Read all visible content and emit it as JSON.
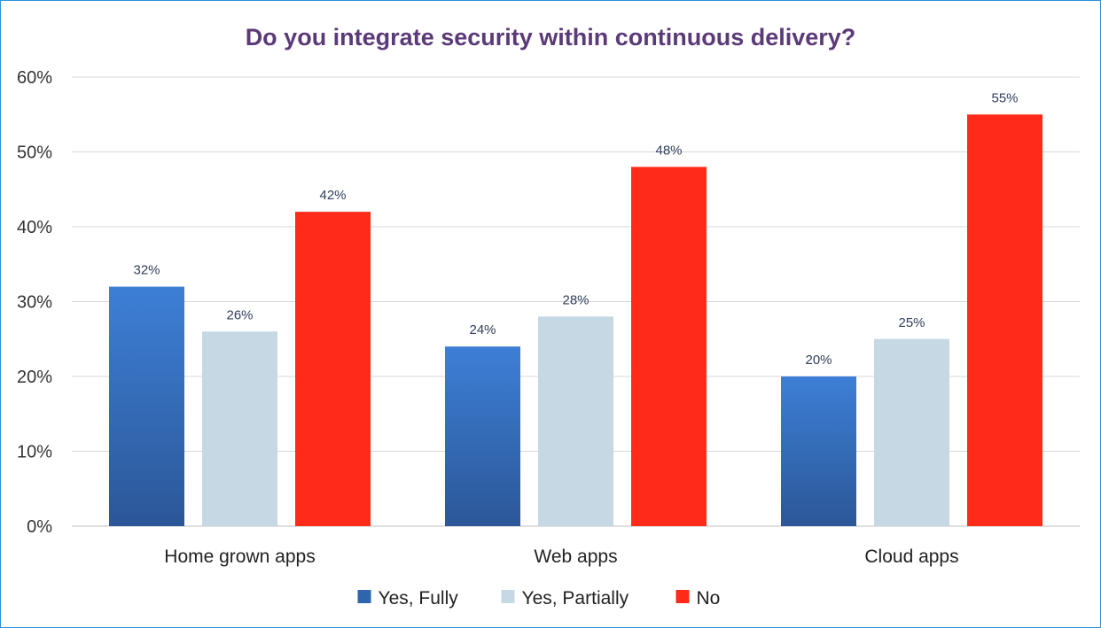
{
  "chart_data": {
    "type": "bar",
    "title": "Do you integrate security within continuous delivery?",
    "xlabel": "",
    "ylabel": "",
    "categories": [
      "Home grown apps",
      "Web apps",
      "Cloud apps"
    ],
    "series": [
      {
        "name": "Yes, Fully",
        "values": [
          32,
          24,
          20
        ],
        "labels": [
          "32%",
          "24%",
          "20%"
        ],
        "color": "#3a7bd5"
      },
      {
        "name": "Yes, Partially",
        "values": [
          26,
          28,
          25
        ],
        "labels": [
          "26%",
          "28%",
          "25%"
        ],
        "color": "#c5d8e4"
      },
      {
        "name": "No",
        "values": [
          42,
          48,
          55
        ],
        "labels": [
          "42%",
          "48%",
          "55%"
        ],
        "color": "#ff2a1a"
      }
    ],
    "ylim": [
      0,
      60
    ],
    "yticks": [
      0,
      10,
      20,
      30,
      40,
      50,
      60
    ],
    "ytick_labels": [
      "0%",
      "10%",
      "20%",
      "30%",
      "40%",
      "50%",
      "60%"
    ],
    "grid": true,
    "legend_position": "bottom"
  }
}
